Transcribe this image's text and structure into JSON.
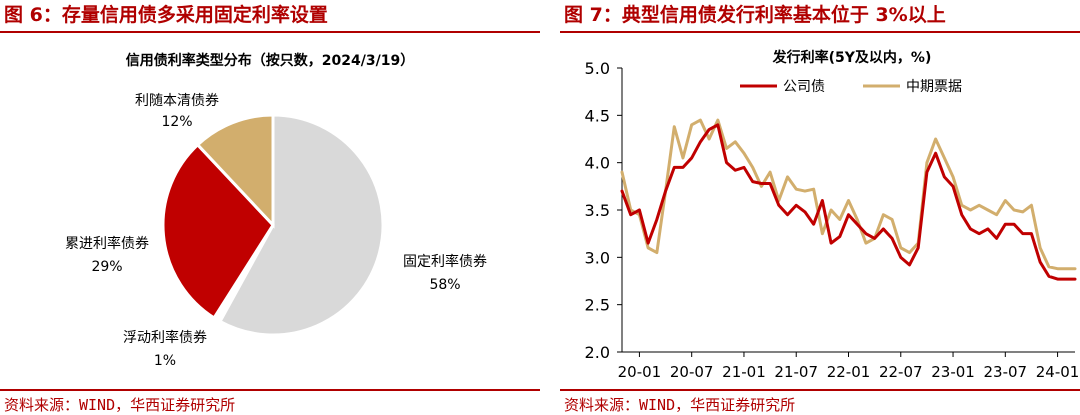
{
  "left": {
    "figure_title": "图 6：存量信用债多采用固定利率设置",
    "source": "资料来源：WIND，华西证券研究所",
    "chart_data": {
      "type": "pie",
      "title": "信用债利率类型分布（按只数，2024/3/19）",
      "slices": [
        {
          "label": "固定利率债券",
          "value": 58,
          "value_text": "58%",
          "color": "#d9d9d9"
        },
        {
          "label": "浮动利率债券",
          "value": 1,
          "value_text": "1%",
          "color": "#ffffff"
        },
        {
          "label": "累进利率债券",
          "value": 29,
          "value_text": "29%",
          "color": "#c00000"
        },
        {
          "label": "利随本清债券",
          "value": 12,
          "value_text": "12%",
          "color": "#d2ae6d"
        }
      ]
    }
  },
  "right": {
    "figure_title": "图 7：典型信用债发行利率基本位于 3%以上",
    "source": "资料来源：WIND，华西证券研究所",
    "chart_data": {
      "type": "line",
      "title": "发行利率(5Y及以内，%)",
      "ylim": [
        2.0,
        5.0
      ],
      "yticks": [
        "5.0",
        "4.5",
        "4.0",
        "3.5",
        "3.0",
        "2.5",
        "2.0"
      ],
      "xticks": [
        "20-01",
        "20-07",
        "21-01",
        "21-07",
        "22-01",
        "22-07",
        "23-01",
        "23-07",
        "24-01"
      ],
      "grid": false,
      "legend_position": "top",
      "x": [
        "2019-11",
        "2019-12",
        "2020-01",
        "2020-02",
        "2020-03",
        "2020-04",
        "2020-05",
        "2020-06",
        "2020-07",
        "2020-08",
        "2020-09",
        "2020-10",
        "2020-11",
        "2020-12",
        "2021-01",
        "2021-02",
        "2021-03",
        "2021-04",
        "2021-05",
        "2021-06",
        "2021-07",
        "2021-08",
        "2021-09",
        "2021-10",
        "2021-11",
        "2021-12",
        "2022-01",
        "2022-02",
        "2022-03",
        "2022-04",
        "2022-05",
        "2022-06",
        "2022-07",
        "2022-08",
        "2022-09",
        "2022-10",
        "2022-11",
        "2022-12",
        "2023-01",
        "2023-02",
        "2023-03",
        "2023-04",
        "2023-05",
        "2023-06",
        "2023-07",
        "2023-08",
        "2023-09",
        "2023-10",
        "2023-11",
        "2023-12",
        "2024-01",
        "2024-02",
        "2024-03"
      ],
      "series": [
        {
          "name": "公司债",
          "color": "#c00000",
          "values": [
            3.7,
            3.45,
            3.5,
            3.15,
            3.4,
            3.7,
            3.95,
            3.95,
            4.05,
            4.22,
            4.35,
            4.4,
            4.0,
            3.92,
            3.95,
            3.8,
            3.78,
            3.78,
            3.55,
            3.45,
            3.55,
            3.48,
            3.35,
            3.6,
            3.15,
            3.22,
            3.45,
            3.35,
            3.25,
            3.2,
            3.3,
            3.2,
            3.0,
            2.92,
            3.1,
            3.9,
            4.1,
            3.85,
            3.75,
            3.45,
            3.3,
            3.25,
            3.3,
            3.2,
            3.35,
            3.35,
            3.25,
            3.25,
            2.95,
            2.8,
            2.77,
            2.77,
            2.77
          ]
        },
        {
          "name": "中期票据",
          "color": "#d2ae6d",
          "values": [
            3.9,
            3.5,
            3.45,
            3.1,
            3.05,
            3.7,
            4.38,
            4.05,
            4.4,
            4.45,
            4.25,
            4.45,
            4.15,
            4.22,
            4.1,
            3.95,
            3.75,
            3.9,
            3.6,
            3.85,
            3.72,
            3.7,
            3.72,
            3.25,
            3.5,
            3.4,
            3.6,
            3.4,
            3.15,
            3.2,
            3.45,
            3.4,
            3.1,
            3.05,
            3.15,
            4.0,
            4.25,
            4.05,
            3.85,
            3.55,
            3.5,
            3.55,
            3.5,
            3.45,
            3.6,
            3.5,
            3.48,
            3.55,
            3.1,
            2.9,
            2.88,
            2.88,
            2.88
          ]
        }
      ]
    }
  }
}
